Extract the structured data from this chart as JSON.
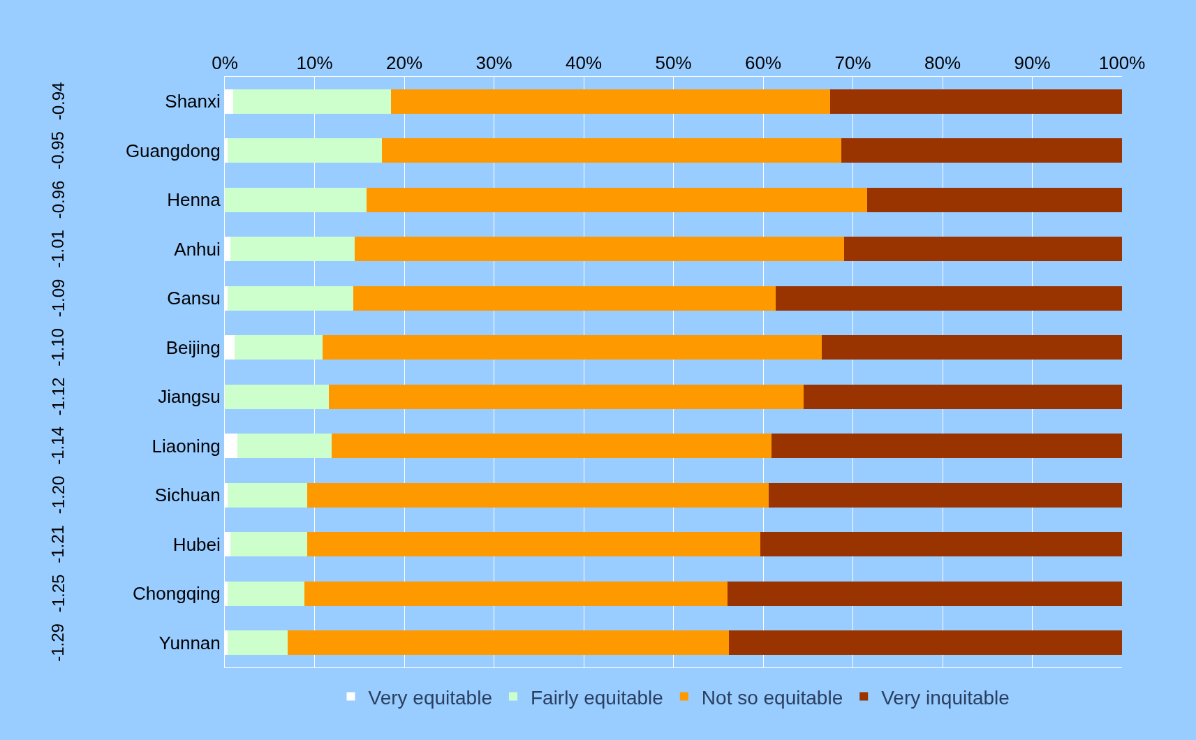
{
  "chart_data": {
    "type": "bar",
    "orientation": "horizontal",
    "stacked": true,
    "categories": [
      "Shanxi",
      "Guangdong",
      "Henna",
      "Anhui",
      "Gansu",
      "Beijing",
      "Jiangsu",
      "Liaoning",
      "Sichuan",
      "Hubei",
      "Chongqing",
      "Yunnan"
    ],
    "y2_categories": [
      "-0.94",
      "-0.95",
      "-0.96",
      "-1.01",
      "-1.09",
      "-1.10",
      "-1.12",
      "-1.14",
      "-1.20",
      "-1.21",
      "-1.25",
      "-1.29"
    ],
    "series": [
      {
        "name": "Very equitable",
        "color": "#ffffff",
        "values": [
          0.9,
          0.3,
          0,
          0.6,
          0.3,
          1.1,
          0,
          1.4,
          0.3,
          0.6,
          0.3,
          0.3
        ]
      },
      {
        "name": "Fairly equitable",
        "color": "#ccffcc",
        "values": [
          17.6,
          17.2,
          15.8,
          13.9,
          14.0,
          9.8,
          11.6,
          10.5,
          8.9,
          8.6,
          8.6,
          6.7
        ]
      },
      {
        "name": "Not so equitable",
        "color": "#ff9900",
        "values": [
          49.0,
          51.2,
          55.8,
          54.5,
          47.1,
          55.6,
          52.9,
          49.0,
          51.4,
          50.5,
          47.1,
          49.2
        ]
      },
      {
        "name": "Very inquitable",
        "color": "#993300",
        "values": [
          32.5,
          31.3,
          28.4,
          31.0,
          38.6,
          33.5,
          35.5,
          39.1,
          39.4,
          40.3,
          44.0,
          43.8
        ]
      }
    ],
    "xlim": [
      0,
      100
    ],
    "xticks": [
      {
        "value": 0,
        "label": "0%"
      },
      {
        "value": 10,
        "label": "10%"
      },
      {
        "value": 20,
        "label": "20%"
      },
      {
        "value": 30,
        "label": "30%"
      },
      {
        "value": 40,
        "label": "40%"
      },
      {
        "value": 50,
        "label": "50%"
      },
      {
        "value": 60,
        "label": "60%"
      },
      {
        "value": 70,
        "label": "70%"
      },
      {
        "value": 80,
        "label": "80%"
      },
      {
        "value": 90,
        "label": "90%"
      },
      {
        "value": 100,
        "label": "100%"
      }
    ],
    "grid": "x",
    "legend": "bottom"
  }
}
